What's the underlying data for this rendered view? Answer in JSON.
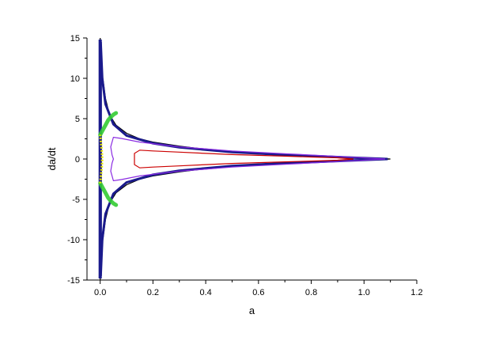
{
  "chart_data": {
    "type": "line",
    "xlabel": "a",
    "ylabel": "da/dt",
    "xlim": [
      -0.05,
      1.2
    ],
    "ylim": [
      -15,
      15
    ],
    "x_ticks": [
      0.0,
      0.2,
      0.4,
      0.6,
      0.8,
      1.0,
      1.2
    ],
    "y_ticks": [
      -15,
      -10,
      -5,
      0,
      5,
      10,
      15
    ],
    "x_tick_labels": [
      "0.0",
      "0.2",
      "0.4",
      "0.6",
      "0.8",
      "1.0",
      "1.2"
    ],
    "y_tick_labels": [
      "-15",
      "-10",
      "-5",
      "0",
      "5",
      "10",
      "15"
    ],
    "grid": false,
    "legend": "none",
    "series": [
      {
        "color": "#000000",
        "curve": "outer_separatrix",
        "x": [
          1.1,
          1.0,
          0.9,
          0.8,
          0.7,
          0.6,
          0.5,
          0.4,
          0.3,
          0.2,
          0.15,
          0.1,
          0.06,
          0.035,
          0.02,
          0.01,
          0.004,
          0.0
        ],
        "y": [
          0.0,
          0.15,
          0.3,
          0.45,
          0.6,
          0.75,
          0.95,
          1.2,
          1.6,
          2.1,
          2.5,
          3.2,
          4.2,
          5.5,
          7.5,
          10.0,
          13.0,
          15.0
        ]
      },
      {
        "color": "#1a1a8c",
        "curve": "dense_trajectories_near_a0",
        "x": [
          1.09,
          0.9,
          0.7,
          0.5,
          0.3,
          0.2,
          0.1,
          0.05,
          0.02,
          0.008,
          0.002
        ],
        "y": [
          0.0,
          0.25,
          0.52,
          0.85,
          1.45,
          1.95,
          2.9,
          4.3,
          6.8,
          10.0,
          14.5
        ]
      },
      {
        "color": "#8a2be2",
        "curve": "middle_loop",
        "x": [
          1.08,
          0.9,
          0.7,
          0.5,
          0.3,
          0.15,
          0.08,
          0.05,
          0.04,
          0.045,
          0.05
        ],
        "y": [
          0.0,
          0.32,
          0.66,
          1.0,
          1.5,
          2.1,
          2.55,
          2.7,
          1.5,
          0.5,
          0.0
        ]
      },
      {
        "color": "#cc0000",
        "curve": "inner_loop",
        "x": [
          0.96,
          0.9,
          0.8,
          0.7,
          0.6,
          0.5,
          0.4,
          0.3,
          0.2,
          0.15,
          0.13,
          0.13
        ],
        "y": [
          0.0,
          0.15,
          0.25,
          0.35,
          0.45,
          0.55,
          0.7,
          0.85,
          1.0,
          1.1,
          0.7,
          0.0
        ]
      },
      {
        "color": "#33cc33",
        "curve": "green_band",
        "x": [
          0.0,
          0.01,
          0.02,
          0.03,
          0.04,
          0.05,
          0.06
        ],
        "y": [
          3.0,
          3.6,
          4.2,
          4.8,
          5.2,
          5.5,
          5.7
        ]
      },
      {
        "color": "#e6e600",
        "curve": "yellow_core",
        "x": [
          0.0,
          0.003,
          0.006,
          0.008,
          0.006,
          0.003,
          0.0
        ],
        "y": [
          -3.0,
          -2.0,
          -1.0,
          0.0,
          1.0,
          2.0,
          3.0
        ]
      }
    ]
  }
}
